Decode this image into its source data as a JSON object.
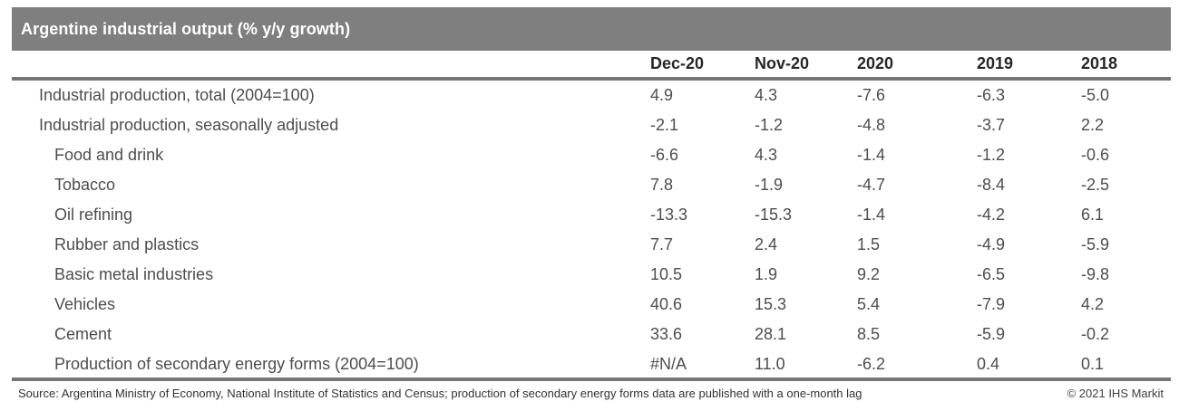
{
  "chart_data": {
    "type": "table",
    "title": "Argentine industrial output (% y/y growth)",
    "columns": [
      "Dec-20",
      "Nov-20",
      "2020",
      "2019",
      "2018"
    ],
    "rows": [
      {
        "label": "Industrial production, total (2004=100)",
        "indent": 1,
        "values": [
          "4.9",
          "4.3",
          "-7.6",
          "-6.3",
          "-5.0"
        ]
      },
      {
        "label": "Industrial production, seasonally adjusted",
        "indent": 1,
        "values": [
          "-2.1",
          "-1.2",
          "-4.8",
          "-3.7",
          "2.2"
        ]
      },
      {
        "label": "Food and drink",
        "indent": 2,
        "values": [
          "-6.6",
          "4.3",
          "-1.4",
          "-1.2",
          "-0.6"
        ]
      },
      {
        "label": "Tobacco",
        "indent": 2,
        "values": [
          "7.8",
          "-1.9",
          "-4.7",
          "-8.4",
          "-2.5"
        ]
      },
      {
        "label": "Oil refining",
        "indent": 2,
        "values": [
          "-13.3",
          "-15.3",
          "-1.4",
          "-4.2",
          "6.1"
        ]
      },
      {
        "label": "Rubber and plastics",
        "indent": 2,
        "values": [
          "7.7",
          "2.4",
          "1.5",
          "-4.9",
          "-5.9"
        ]
      },
      {
        "label": "Basic metal industries",
        "indent": 2,
        "values": [
          "10.5",
          "1.9",
          "9.2",
          "-6.5",
          "-9.8"
        ]
      },
      {
        "label": "Vehicles",
        "indent": 2,
        "values": [
          "40.6",
          "15.3",
          "5.4",
          "-7.9",
          "4.2"
        ]
      },
      {
        "label": "Cement",
        "indent": 2,
        "values": [
          "33.6",
          "28.1",
          "8.5",
          "-5.9",
          "-0.2"
        ]
      },
      {
        "label": "Production of secondary energy forms (2004=100)",
        "indent": 2,
        "values": [
          "#N/A",
          "11.0",
          "-6.2",
          "0.4",
          "0.1"
        ]
      }
    ]
  },
  "footer": {
    "source": "Source: Argentina Ministry of Economy, National Institute of Statistics and Census; production of secondary energy forms data are published with a one-month lag",
    "copyright": "© 2021 IHS Markit"
  },
  "colors": {
    "title_bar_bg": "#7f7f7f",
    "title_text": "#ffffff",
    "rule": "#767676",
    "header_text": "#262626",
    "body_text": "#4d4d4d",
    "footer_text": "#333333"
  }
}
